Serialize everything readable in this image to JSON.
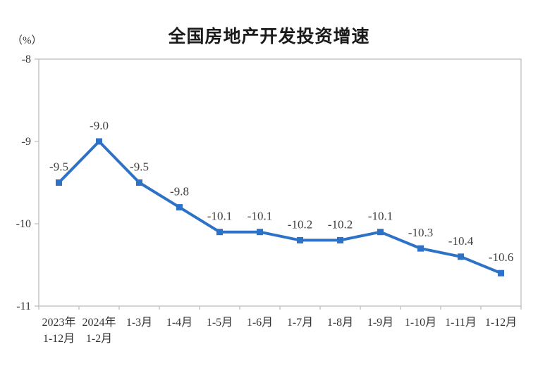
{
  "page": {
    "title": "全国房地产开发投资增速",
    "y_unit_label": "（%）"
  },
  "chart_data": {
    "type": "line",
    "title": "全国房地产开发投资增速",
    "ylabel": "（%）",
    "categories": [
      "2023年\n1-12月",
      "2024年\n1-2月",
      "1-3月",
      "1-4月",
      "1-5月",
      "1-6月",
      "1-7月",
      "1-8月",
      "1-9月",
      "1-10月",
      "1-11月",
      "1-12月"
    ],
    "values": [
      -9.5,
      -9.0,
      -9.5,
      -9.8,
      -10.1,
      -10.1,
      -10.2,
      -10.2,
      -10.1,
      -10.3,
      -10.4,
      -10.6
    ],
    "data_labels": [
      "-9.5",
      "-9.0",
      "-9.5",
      "-9.8",
      "-10.1",
      "-10.1",
      "-10.2",
      "-10.2",
      "-10.1",
      "-10.3",
      "-10.4",
      "-10.6"
    ],
    "ylim": [
      -11,
      -8
    ],
    "yticks": [
      -8,
      -9,
      -10,
      -11
    ],
    "ytick_labels": [
      "-8",
      "-9",
      "-10",
      "-11"
    ],
    "grid": false,
    "legend": "none",
    "marker": "square",
    "line_color": "#2E72C8",
    "marker_color": "#2E72C8",
    "axis_color": "#C6C6C6",
    "label_color": "#404040",
    "tick_label_color": "#333333"
  }
}
